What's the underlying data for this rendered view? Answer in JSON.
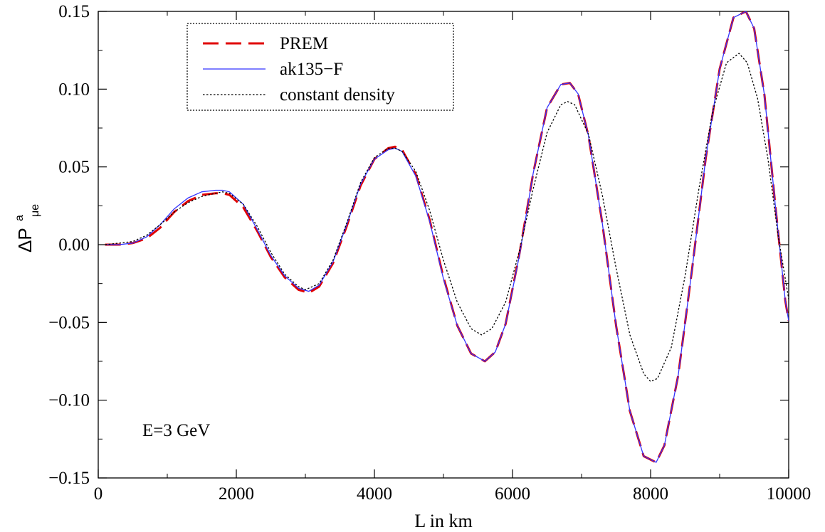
{
  "chart_data": {
    "type": "line",
    "xlabel": "L in km",
    "ylabel": {
      "main": "ΔP",
      "sup": "a",
      "sub": "μe"
    },
    "xlim": [
      0,
      10000
    ],
    "ylim": [
      -0.15,
      0.15
    ],
    "xticks": [
      0,
      2000,
      4000,
      6000,
      8000,
      10000
    ],
    "yticks": [
      -0.15,
      -0.1,
      -0.05,
      0.0,
      0.05,
      0.1,
      0.15
    ],
    "xtick_labels": [
      "0",
      "2000",
      "4000",
      "6000",
      "8000",
      "10000"
    ],
    "ytick_labels": [
      "−0.15",
      "−0.10",
      "−0.05",
      "0.00",
      "0.05",
      "0.10",
      "0.15"
    ],
    "grid": false,
    "legend_position": "top-left",
    "annotation": "E=3 GeV",
    "series": [
      {
        "name": "PREM",
        "color": "#e00000",
        "style": "dashed",
        "x": [
          100,
          300,
          500,
          700,
          900,
          1100,
          1300,
          1500,
          1700,
          1800,
          1900,
          2100,
          2300,
          2500,
          2700,
          2900,
          3050,
          3200,
          3400,
          3600,
          3800,
          4000,
          4200,
          4300,
          4400,
          4600,
          4800,
          5000,
          5200,
          5400,
          5600,
          5750,
          5900,
          6100,
          6300,
          6500,
          6700,
          6830,
          6950,
          7100,
          7300,
          7500,
          7700,
          7900,
          8080,
          8200,
          8400,
          8600,
          8800,
          9000,
          9200,
          9380,
          9500,
          9650,
          9800,
          9950,
          10000
        ],
        "y": [
          0.0,
          0.0,
          0.001,
          0.004,
          0.011,
          0.021,
          0.028,
          0.032,
          0.033,
          0.033,
          0.032,
          0.024,
          0.009,
          -0.008,
          -0.021,
          -0.029,
          -0.031,
          -0.027,
          -0.012,
          0.012,
          0.038,
          0.055,
          0.062,
          0.063,
          0.061,
          0.045,
          0.016,
          -0.021,
          -0.052,
          -0.07,
          -0.075,
          -0.069,
          -0.051,
          -0.006,
          0.046,
          0.088,
          0.103,
          0.104,
          0.097,
          0.07,
          0.014,
          -0.052,
          -0.107,
          -0.136,
          -0.14,
          -0.129,
          -0.084,
          -0.016,
          0.056,
          0.113,
          0.146,
          0.15,
          0.139,
          0.096,
          0.028,
          -0.036,
          -0.049
        ]
      },
      {
        "name": "ak135−F",
        "color": "#3333ff",
        "style": "solid",
        "x": [
          100,
          300,
          500,
          700,
          900,
          1100,
          1300,
          1500,
          1700,
          1800,
          1900,
          2100,
          2300,
          2500,
          2700,
          2900,
          3050,
          3200,
          3400,
          3600,
          3800,
          4000,
          4200,
          4300,
          4400,
          4600,
          4800,
          5000,
          5200,
          5400,
          5600,
          5750,
          5900,
          6100,
          6300,
          6500,
          6700,
          6830,
          6950,
          7100,
          7300,
          7500,
          7700,
          7900,
          8080,
          8200,
          8400,
          8600,
          8800,
          9000,
          9200,
          9380,
          9500,
          9650,
          9800,
          9950,
          10000
        ],
        "y": [
          0.0,
          0.0,
          0.001,
          0.005,
          0.013,
          0.023,
          0.03,
          0.034,
          0.035,
          0.035,
          0.034,
          0.026,
          0.01,
          -0.007,
          -0.02,
          -0.028,
          -0.03,
          -0.026,
          -0.011,
          0.013,
          0.039,
          0.055,
          0.061,
          0.062,
          0.06,
          0.044,
          0.015,
          -0.022,
          -0.052,
          -0.07,
          -0.075,
          -0.069,
          -0.051,
          -0.007,
          0.046,
          0.088,
          0.103,
          0.104,
          0.097,
          0.07,
          0.014,
          -0.052,
          -0.107,
          -0.136,
          -0.14,
          -0.129,
          -0.084,
          -0.016,
          0.056,
          0.113,
          0.146,
          0.15,
          0.139,
          0.096,
          0.028,
          -0.036,
          -0.049
        ]
      },
      {
        "name": "constant density",
        "color": "#000000",
        "style": "dotted",
        "x": [
          100,
          300,
          500,
          700,
          900,
          1100,
          1300,
          1500,
          1700,
          1800,
          1900,
          2100,
          2300,
          2500,
          2700,
          2900,
          3000,
          3200,
          3400,
          3600,
          3800,
          4000,
          4200,
          4300,
          4400,
          4600,
          4800,
          5000,
          5200,
          5400,
          5550,
          5700,
          5900,
          6100,
          6300,
          6500,
          6700,
          6800,
          6900,
          7100,
          7300,
          7500,
          7700,
          7900,
          8000,
          8100,
          8300,
          8500,
          8700,
          8900,
          9100,
          9280,
          9400,
          9550,
          9700,
          9850,
          10000
        ],
        "y": [
          0.0,
          0.001,
          0.002,
          0.006,
          0.013,
          0.021,
          0.027,
          0.031,
          0.033,
          0.034,
          0.033,
          0.026,
          0.012,
          -0.005,
          -0.019,
          -0.027,
          -0.029,
          -0.025,
          -0.01,
          0.014,
          0.04,
          0.056,
          0.062,
          0.062,
          0.06,
          0.047,
          0.022,
          -0.01,
          -0.037,
          -0.054,
          -0.058,
          -0.054,
          -0.037,
          -0.004,
          0.036,
          0.072,
          0.09,
          0.092,
          0.09,
          0.071,
          0.032,
          -0.015,
          -0.058,
          -0.083,
          -0.088,
          -0.086,
          -0.066,
          -0.02,
          0.036,
          0.086,
          0.117,
          0.123,
          0.117,
          0.094,
          0.055,
          0.005,
          -0.035
        ]
      }
    ]
  }
}
